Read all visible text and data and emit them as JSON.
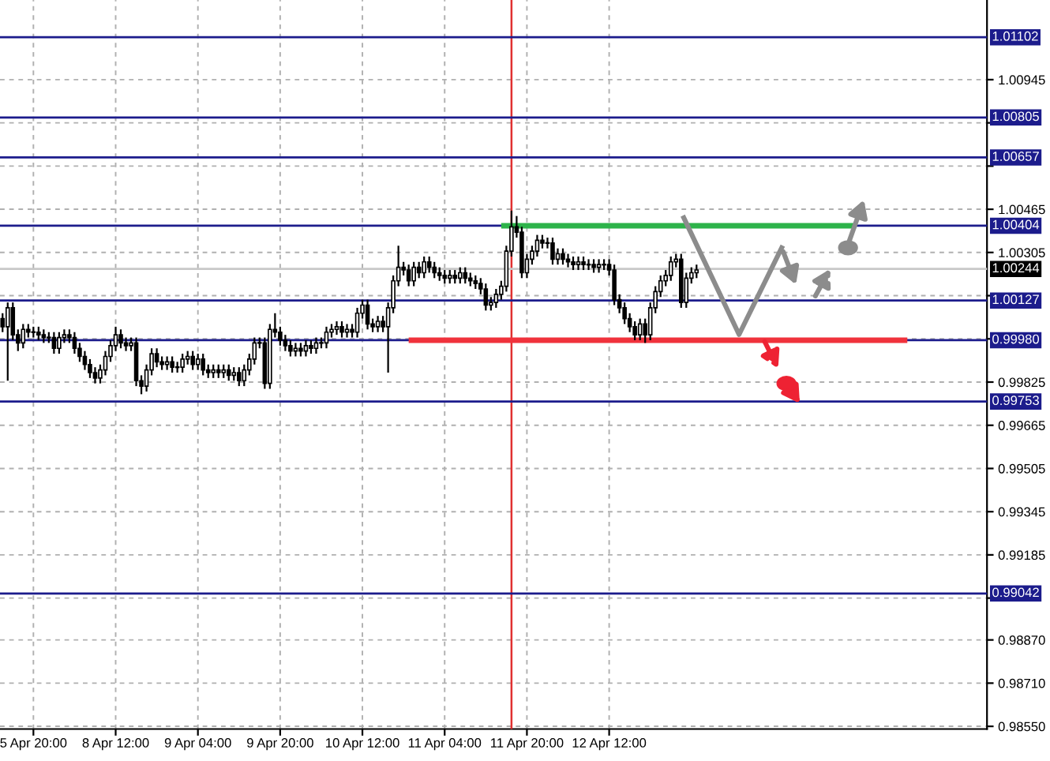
{
  "chart_data": {
    "type": "candlestick",
    "categories": [
      null,
      null,
      null,
      null,
      null,
      null,
      "5 Apr 20:00",
      null,
      null,
      null,
      null,
      null,
      null,
      null,
      null,
      null,
      null,
      null,
      null,
      null,
      null,
      null,
      "8 Apr 12:00",
      null,
      null,
      null,
      null,
      null,
      null,
      null,
      null,
      null,
      null,
      null,
      null,
      null,
      null,
      null,
      "9 Apr 04:00",
      null,
      null,
      null,
      null,
      null,
      null,
      null,
      null,
      null,
      null,
      null,
      null,
      null,
      null,
      null,
      "9 Apr 20:00",
      null,
      null,
      null,
      null,
      null,
      null,
      null,
      null,
      null,
      null,
      null,
      null,
      null,
      null,
      null,
      "10 Apr 12:00",
      null,
      null,
      null,
      null,
      null,
      null,
      null,
      null,
      null,
      null,
      null,
      null,
      null,
      null,
      null,
      "11 Apr 04:00",
      null,
      null,
      null,
      null,
      null,
      null,
      null,
      null,
      null,
      null,
      null,
      null,
      null,
      null,
      null,
      "11 Apr 20:00",
      null,
      null,
      null,
      null,
      null,
      null,
      null,
      null,
      null,
      null,
      null,
      null,
      null,
      null,
      null,
      "12 Apr 12:00",
      null,
      null,
      null,
      null,
      null,
      null,
      null,
      null,
      null,
      null,
      null,
      null,
      null,
      null,
      null,
      null,
      null,
      null,
      null,
      null,
      null,
      null,
      null,
      null,
      null,
      null,
      null,
      null,
      null,
      null,
      null,
      null,
      null,
      null,
      null,
      null,
      null,
      null,
      null,
      null,
      null,
      null,
      null,
      null,
      null,
      null,
      null,
      null,
      null,
      null,
      null,
      null,
      null,
      null,
      null,
      null,
      null,
      null,
      null,
      null,
      null,
      null,
      null,
      null,
      null,
      null,
      null,
      null,
      null,
      null,
      null,
      null,
      null
    ],
    "ohlc": [
      [
        1.0006,
        1.0008,
        1.0001,
        1.0003
      ],
      [
        1.0003,
        1.0012,
        0.9983,
        1.001
      ],
      [
        1.001,
        1.0012,
        0.9998,
        1.0
      ],
      [
        1.0,
        1.0002,
        0.9994,
        0.9997
      ],
      [
        0.9997,
        1.0004,
        0.9995,
        1.0002
      ],
      [
        1.0002,
        1.0004,
        0.9999,
        1.0001
      ],
      [
        1.0001,
        1.0003,
        0.9999,
        1.0001
      ],
      [
        1.0001,
        1.0003,
        0.9998,
        1.0
      ],
      [
        1.0,
        1.0002,
        0.9997,
        0.9999
      ],
      [
        0.9999,
        1.0001,
        0.9997,
        0.9999
      ],
      [
        0.9999,
        1.0001,
        0.9993,
        0.9995
      ],
      [
        0.9995,
        1.0001,
        0.9993,
        0.9999
      ],
      [
        0.9999,
        1.0002,
        0.9997,
        1.0
      ],
      [
        1.0,
        1.0002,
        0.9997,
        0.9999
      ],
      [
        0.9999,
        1.0001,
        0.9993,
        0.9995
      ],
      [
        0.9995,
        0.9997,
        0.999,
        0.9992
      ],
      [
        0.9992,
        0.9994,
        0.9987,
        0.9989
      ],
      [
        0.9989,
        0.9991,
        0.9984,
        0.9986
      ],
      [
        0.9986,
        0.9988,
        0.9982,
        0.9984
      ],
      [
        0.9984,
        0.9989,
        0.9982,
        0.9987
      ],
      [
        0.9987,
        0.9994,
        0.9985,
        0.9992
      ],
      [
        0.9992,
        0.9998,
        0.999,
        0.9996
      ],
      [
        0.9996,
        1.0003,
        0.9994,
        1.0
      ],
      [
        1.0,
        1.0002,
        0.9995,
        0.9997
      ],
      [
        0.9997,
        0.9999,
        0.9994,
        0.9996
      ],
      [
        0.9996,
        0.9999,
        0.9994,
        0.9997
      ],
      [
        0.9997,
        0.9999,
        0.9981,
        0.9983
      ],
      [
        0.9983,
        0.9985,
        0.9978,
        0.9981
      ],
      [
        0.9981,
        0.9989,
        0.9979,
        0.9987
      ],
      [
        0.9987,
        0.9995,
        0.9985,
        0.9993
      ],
      [
        0.9993,
        0.9995,
        0.9988,
        0.999
      ],
      [
        0.999,
        0.9992,
        0.9987,
        0.9989
      ],
      [
        0.9989,
        0.9992,
        0.9987,
        0.999
      ],
      [
        0.999,
        0.9992,
        0.9986,
        0.9988
      ],
      [
        0.9988,
        0.999,
        0.9986,
        0.9988
      ],
      [
        0.9988,
        0.9993,
        0.9986,
        0.9991
      ],
      [
        0.9991,
        0.9994,
        0.9989,
        0.9992
      ],
      [
        0.9992,
        0.9994,
        0.9987,
        0.9989
      ],
      [
        0.9989,
        0.9993,
        0.9987,
        0.9991
      ],
      [
        0.9991,
        0.9993,
        0.9985,
        0.9987
      ],
      [
        0.9987,
        0.9989,
        0.9984,
        0.9986
      ],
      [
        0.9986,
        0.9989,
        0.9984,
        0.9987
      ],
      [
        0.9987,
        0.9989,
        0.9984,
        0.9986
      ],
      [
        0.9986,
        0.9989,
        0.9984,
        0.9987
      ],
      [
        0.9987,
        0.9989,
        0.9983,
        0.9985
      ],
      [
        0.9985,
        0.9988,
        0.9983,
        0.9986
      ],
      [
        0.9986,
        0.9988,
        0.9981,
        0.9983
      ],
      [
        0.9983,
        0.9989,
        0.9981,
        0.9987
      ],
      [
        0.9987,
        0.9993,
        0.9985,
        0.9991
      ],
      [
        0.9991,
        0.9999,
        0.9989,
        0.9997
      ],
      [
        0.9997,
        0.9999,
        0.9995,
        0.9997
      ],
      [
        0.9997,
        0.9999,
        0.998,
        0.9982
      ],
      [
        0.9982,
        1.0004,
        0.998,
        1.0002
      ],
      [
        1.0002,
        1.0008,
        0.9999,
        1.0001
      ],
      [
        1.0001,
        1.0003,
        0.9996,
        0.9998
      ],
      [
        0.9998,
        1.0,
        0.9994,
        0.9996
      ],
      [
        0.9996,
        0.9998,
        0.9992,
        0.9994
      ],
      [
        0.9994,
        0.9997,
        0.9992,
        0.9995
      ],
      [
        0.9995,
        0.9997,
        0.9992,
        0.9994
      ],
      [
        0.9994,
        0.9998,
        0.9992,
        0.9996
      ],
      [
        0.9996,
        0.9998,
        0.9993,
        0.9995
      ],
      [
        0.9995,
        0.9999,
        0.9993,
        0.9997
      ],
      [
        0.9997,
        0.9999,
        0.9995,
        0.9997
      ],
      [
        0.9997,
        1.0003,
        0.9995,
        1.0001
      ],
      [
        1.0001,
        1.0004,
        0.9999,
        1.0002
      ],
      [
        1.0002,
        1.0005,
        1.0,
        1.0003
      ],
      [
        1.0003,
        1.0005,
        0.9999,
        1.0001
      ],
      [
        1.0001,
        1.0004,
        0.9999,
        1.0002
      ],
      [
        1.0002,
        1.0004,
        0.9999,
        1.0001
      ],
      [
        1.0001,
        1.001,
        0.9999,
        1.0008
      ],
      [
        1.0008,
        1.0013,
        1.0006,
        1.0011
      ],
      [
        1.0011,
        1.0013,
        1.0002,
        1.0004
      ],
      [
        1.0004,
        1.0006,
        1.0001,
        1.0003
      ],
      [
        1.0003,
        1.0007,
        1.0001,
        1.0005
      ],
      [
        1.0005,
        1.0007,
        1.0001,
        1.0003
      ],
      [
        1.0003,
        1.0012,
        0.9986,
        1.001
      ],
      [
        1.001,
        1.0022,
        1.0008,
        1.002
      ],
      [
        1.002,
        1.0033,
        1.0018,
        1.0025
      ],
      [
        1.0025,
        1.0027,
        1.0022,
        1.0024
      ],
      [
        1.0024,
        1.0026,
        1.0018,
        1.002
      ],
      [
        1.002,
        1.0027,
        1.0018,
        1.0025
      ],
      [
        1.0025,
        1.0027,
        1.0021,
        1.0023
      ],
      [
        1.0023,
        1.0029,
        1.0021,
        1.0027
      ],
      [
        1.0027,
        1.0029,
        1.0023,
        1.0025
      ],
      [
        1.0025,
        1.0027,
        1.0021,
        1.0023
      ],
      [
        1.0023,
        1.0025,
        1.002,
        1.0022
      ],
      [
        1.0022,
        1.0024,
        1.0019,
        1.0021
      ],
      [
        1.0021,
        1.0024,
        1.0019,
        1.0022
      ],
      [
        1.0022,
        1.0024,
        1.0019,
        1.0021
      ],
      [
        1.0021,
        1.0025,
        1.0019,
        1.0023
      ],
      [
        1.0023,
        1.0025,
        1.0019,
        1.0021
      ],
      [
        1.0021,
        1.0023,
        1.0018,
        1.002
      ],
      [
        1.002,
        1.0022,
        1.0017,
        1.0019
      ],
      [
        1.0019,
        1.0021,
        1.0015,
        1.0017
      ],
      [
        1.0017,
        1.0019,
        1.0009,
        1.0011
      ],
      [
        1.0011,
        1.0014,
        1.0009,
        1.0012
      ],
      [
        1.0012,
        1.0017,
        1.001,
        1.0015
      ],
      [
        1.0015,
        1.002,
        1.0013,
        1.0018
      ],
      [
        1.0018,
        1.0033,
        1.0016,
        1.0031
      ],
      [
        1.0031,
        1.0046,
        1.0029,
        1.004
      ],
      [
        1.004,
        1.0044,
        1.0036,
        1.0038
      ],
      [
        1.0038,
        1.004,
        1.0021,
        1.0023
      ],
      [
        1.0023,
        1.003,
        1.0021,
        1.0028
      ],
      [
        1.0028,
        1.0033,
        1.0026,
        1.0031
      ],
      [
        1.0031,
        1.0037,
        1.0029,
        1.0035
      ],
      [
        1.0035,
        1.0037,
        1.0032,
        1.0034
      ],
      [
        1.0034,
        1.0036,
        1.0032,
        1.0034
      ],
      [
        1.0034,
        1.0036,
        1.0026,
        1.0028
      ],
      [
        1.0028,
        1.0032,
        1.0026,
        1.003
      ],
      [
        1.003,
        1.0032,
        1.0026,
        1.0028
      ],
      [
        1.0028,
        1.003,
        1.0025,
        1.0027
      ],
      [
        1.0027,
        1.0029,
        1.0024,
        1.0026
      ],
      [
        1.0026,
        1.0029,
        1.0024,
        1.0027
      ],
      [
        1.0027,
        1.0029,
        1.0024,
        1.0026
      ],
      [
        1.0026,
        1.0028,
        1.0024,
        1.0026
      ],
      [
        1.0026,
        1.0028,
        1.0023,
        1.0025
      ],
      [
        1.0025,
        1.0028,
        1.0023,
        1.0026
      ],
      [
        1.0026,
        1.0028,
        1.0024,
        1.0026
      ],
      [
        1.0026,
        1.0028,
        1.0022,
        1.0024
      ],
      [
        1.0024,
        1.0026,
        1.0011,
        1.0013
      ],
      [
        1.0013,
        1.0015,
        1.0008,
        1.001
      ],
      [
        1.001,
        1.0012,
        1.0004,
        1.0006
      ],
      [
        1.0006,
        1.0008,
        1.0001,
        1.0003
      ],
      [
        1.0003,
        1.0005,
        0.9998,
        1.0
      ],
      [
        1.0,
        1.0006,
        0.9998,
        1.0004
      ],
      [
        1.0004,
        1.0006,
        0.9997,
        1.0
      ],
      [
        1.0,
        1.0012,
        0.9998,
        1.001
      ],
      [
        1.001,
        1.0018,
        1.0008,
        1.0016
      ],
      [
        1.0016,
        1.0022,
        1.0014,
        1.002
      ],
      [
        1.002,
        1.0024,
        1.0018,
        1.0022
      ],
      [
        1.0022,
        1.0029,
        1.002,
        1.0027
      ],
      [
        1.0027,
        1.003,
        1.0025,
        1.0028
      ],
      [
        1.0028,
        1.003,
        1.001,
        1.0012
      ],
      [
        1.0012,
        1.0023,
        1.001,
        1.0021
      ],
      [
        1.0021,
        1.0025,
        1.0019,
        1.0023
      ],
      [
        1.0023,
        1.0026,
        1.0021,
        1.0024
      ],
      null,
      null,
      null,
      null,
      null,
      null,
      null,
      null,
      null,
      null,
      null,
      null,
      null,
      null,
      null,
      null,
      null,
      null,
      null,
      null,
      null,
      null,
      null,
      null,
      null,
      null,
      null,
      null,
      null,
      null,
      null,
      null,
      null,
      null,
      null,
      null,
      null,
      null,
      null,
      null,
      null,
      null,
      null,
      null,
      null,
      null,
      null,
      null,
      null,
      null,
      null,
      null,
      null,
      null,
      null,
      null
    ],
    "series": [
      {
        "type": "line",
        "color": "#2db34a",
        "values": [
          null,
          null,
          null,
          null,
          null,
          null,
          null,
          null,
          null,
          null,
          null,
          null,
          null,
          null,
          null,
          null,
          null,
          null,
          null,
          null,
          null,
          null,
          null,
          null,
          null,
          null,
          null,
          null,
          null,
          null,
          null,
          null,
          null,
          null,
          null,
          null,
          null,
          null,
          null,
          null,
          null,
          null,
          null,
          null,
          null,
          null,
          null,
          null,
          null,
          null,
          null,
          null,
          null,
          null,
          null,
          null,
          null,
          null,
          null,
          null,
          null,
          null,
          null,
          null,
          null,
          null,
          null,
          null,
          null,
          null,
          null,
          null,
          null,
          null,
          null,
          null,
          null,
          null,
          null,
          null,
          null,
          null,
          null,
          null,
          null,
          null,
          null,
          null,
          null,
          null,
          null,
          null,
          null,
          null,
          null,
          null,
          null,
          1.00404,
          null,
          null,
          null,
          null,
          null,
          null,
          null,
          null,
          null,
          null,
          null,
          null,
          null,
          null,
          null,
          null,
          null,
          null,
          null,
          null,
          null,
          null,
          null,
          null,
          null,
          null,
          null,
          null,
          null,
          null,
          null,
          null,
          null,
          null,
          null,
          null,
          null,
          null,
          null,
          null,
          null,
          null,
          null,
          null,
          null,
          null,
          null,
          null,
          null,
          null,
          null,
          null,
          null,
          null,
          null,
          null,
          null,
          null,
          null,
          null,
          null,
          null,
          null,
          null,
          null,
          null,
          null,
          null,
          1.00404,
          null,
          null,
          null,
          null,
          null,
          null,
          null,
          null,
          null,
          null,
          null,
          null,
          null,
          null,
          null,
          null,
          null,
          null,
          null,
          null,
          null,
          null,
          null,
          null,
          null
        ]
      },
      {
        "type": "line",
        "color": "#f0323c",
        "values": [
          null,
          null,
          null,
          null,
          null,
          null,
          null,
          null,
          null,
          null,
          null,
          null,
          null,
          null,
          null,
          null,
          null,
          null,
          null,
          null,
          null,
          null,
          null,
          null,
          null,
          null,
          null,
          null,
          null,
          null,
          null,
          null,
          null,
          null,
          null,
          null,
          null,
          null,
          null,
          null,
          null,
          null,
          null,
          null,
          null,
          null,
          null,
          null,
          null,
          null,
          null,
          null,
          null,
          null,
          null,
          null,
          null,
          null,
          null,
          null,
          null,
          null,
          null,
          null,
          null,
          null,
          null,
          null,
          null,
          null,
          null,
          null,
          null,
          null,
          null,
          null,
          null,
          null,
          null,
          0.9998,
          null,
          null,
          null,
          null,
          null,
          null,
          null,
          null,
          null,
          null,
          null,
          null,
          null,
          null,
          null,
          null,
          null,
          null,
          null,
          null,
          null,
          null,
          null,
          null,
          null,
          null,
          null,
          null,
          null,
          null,
          null,
          null,
          null,
          null,
          null,
          null,
          null,
          null,
          null,
          null,
          null,
          null,
          null,
          null,
          null,
          null,
          null,
          null,
          null,
          null,
          null,
          null,
          null,
          null,
          null,
          null,
          null,
          null,
          null,
          null,
          null,
          null,
          null,
          null,
          null,
          null,
          null,
          null,
          null,
          null,
          null,
          null,
          null,
          null,
          null,
          null,
          null,
          null,
          null,
          null,
          null,
          null,
          null,
          null,
          null,
          null,
          null,
          null,
          null,
          null,
          null,
          null,
          null,
          null,
          null,
          null,
          0.9998,
          null,
          null,
          null,
          null,
          null,
          null,
          null,
          null,
          null,
          null,
          null,
          null,
          null,
          null,
          null
        ]
      }
    ],
    "ylim": [
      0.9854,
      1.0124
    ],
    "yticks": [
      {
        "value": 0.9855,
        "label": "0.98550"
      },
      {
        "value": 0.9871,
        "label": "0.98710"
      },
      {
        "value": 0.9887,
        "label": "0.98870"
      },
      {
        "value": 0.99025,
        "label": null
      },
      0.99185,
      0.99345,
      0.99505,
      0.99665,
      0.99825,
      {
        "value": 0.99985,
        "label": null
      },
      {
        "value": 1.00145,
        "label": null
      },
      1.00305,
      1.00465,
      {
        "value": 1.00625,
        "label": null
      },
      {
        "value": 1.00785,
        "label": null
      },
      1.00945
    ],
    "ref_lines": [
      {
        "axis": "y",
        "value": 1.01102,
        "label": "1.01102",
        "color": "#1c1c8c"
      },
      {
        "axis": "y",
        "value": 1.00805,
        "label": "1.00805",
        "color": "#1c1c8c"
      },
      {
        "axis": "y",
        "value": 1.00657,
        "label": "1.00657",
        "color": "#1c1c8c"
      },
      {
        "axis": "y",
        "value": 1.00404,
        "label": "1.00404",
        "color": "#1c1c8c"
      },
      {
        "axis": "y",
        "value": 1.00244,
        "label": "1.00244",
        "color": "#c8c8c8"
      },
      {
        "axis": "y",
        "value": 1.00127,
        "label": "1.00127",
        "color": "#1c1c8c"
      },
      {
        "axis": "y",
        "value": 0.9998,
        "label": "0.99980",
        "color": "#1c1c8c"
      },
      {
        "axis": "y",
        "value": 0.99753,
        "label": "0.99753",
        "color": "#1c1c8c"
      },
      {
        "axis": "y",
        "value": 0.99042,
        "label": "0.99042",
        "color": "#1c1c8c"
      }
    ],
    "grid": true
  }
}
